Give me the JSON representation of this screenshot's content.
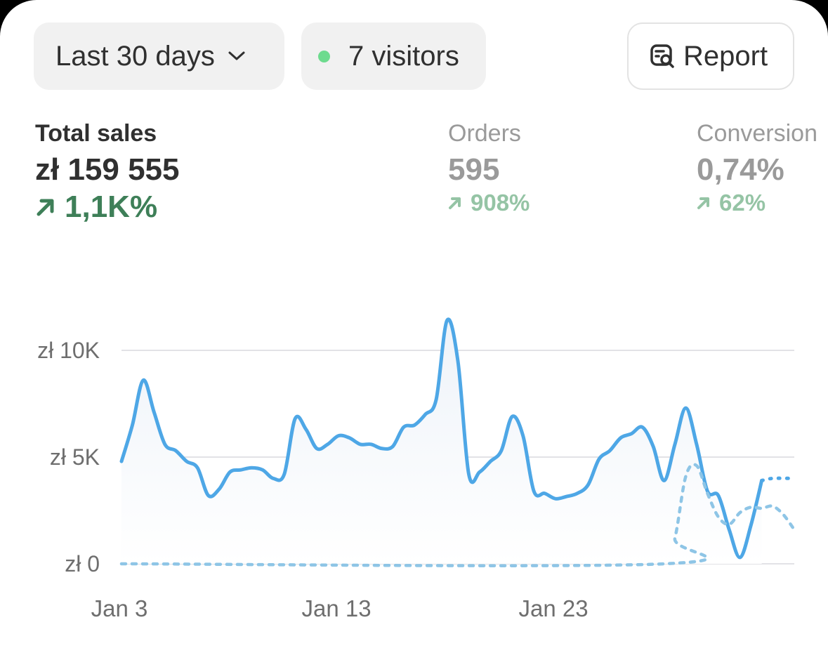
{
  "filters": {
    "date_range_label": "Last 30 days",
    "visitors_label": "7 visitors",
    "report_label": "Report"
  },
  "metrics": {
    "total_sales": {
      "label": "Total sales",
      "value": "zł 159 555",
      "change": "1,1K%"
    },
    "orders": {
      "label": "Orders",
      "value": "595",
      "change": "908%"
    },
    "conversion": {
      "label": "Conversion",
      "value": "0,74%",
      "change": "62%"
    }
  },
  "colors": {
    "current_line": "#4ea7e6",
    "comparison_line": "#8ec5e6",
    "positive_change": "#3e7f58",
    "positive_change_muted": "#95c4a5",
    "live_dot": "#6ddb8e"
  },
  "chart_data": {
    "type": "line",
    "title": "",
    "xlabel": "",
    "ylabel": "",
    "ylim": [
      0,
      11500
    ],
    "y_ticks": [
      {
        "value": 0,
        "label": "zł 0"
      },
      {
        "value": 5000,
        "label": "zł 5K"
      },
      {
        "value": 10000,
        "label": "zł 10K"
      }
    ],
    "x_ticks": [
      {
        "day": 3,
        "label": "Jan 3"
      },
      {
        "day": 13,
        "label": "Jan 13"
      },
      {
        "day": 23,
        "label": "Jan 23"
      }
    ],
    "grid": true,
    "legend": "none",
    "series": [
      {
        "style": "solid",
        "points": [
          [
            3.0,
            4800
          ],
          [
            3.5,
            6500
          ],
          [
            4.0,
            8600
          ],
          [
            4.5,
            7100
          ],
          [
            5.0,
            5600
          ],
          [
            5.5,
            5300
          ],
          [
            6.0,
            4800
          ],
          [
            6.5,
            4500
          ],
          [
            7.0,
            3200
          ],
          [
            7.5,
            3500
          ],
          [
            8.0,
            4300
          ],
          [
            8.5,
            4400
          ],
          [
            9.0,
            4500
          ],
          [
            9.5,
            4400
          ],
          [
            10.0,
            4000
          ],
          [
            10.5,
            4200
          ],
          [
            11.0,
            6800
          ],
          [
            11.5,
            6300
          ],
          [
            12.0,
            5400
          ],
          [
            12.5,
            5600
          ],
          [
            13.0,
            6000
          ],
          [
            13.5,
            5900
          ],
          [
            14.0,
            5600
          ],
          [
            14.5,
            5600
          ],
          [
            15.0,
            5400
          ],
          [
            15.5,
            5500
          ],
          [
            16.0,
            6400
          ],
          [
            16.5,
            6500
          ],
          [
            17.0,
            7000
          ],
          [
            17.5,
            7700
          ],
          [
            18.0,
            11400
          ],
          [
            18.5,
            9500
          ],
          [
            19.0,
            4200
          ],
          [
            19.5,
            4300
          ],
          [
            20.0,
            4800
          ],
          [
            20.5,
            5300
          ],
          [
            21.0,
            6900
          ],
          [
            21.5,
            6000
          ],
          [
            22.0,
            3400
          ],
          [
            22.5,
            3300
          ],
          [
            23.0,
            3050
          ],
          [
            23.5,
            3150
          ],
          [
            24.0,
            3300
          ],
          [
            24.5,
            3700
          ],
          [
            25.0,
            4900
          ],
          [
            25.5,
            5300
          ],
          [
            26.0,
            5900
          ],
          [
            26.5,
            6100
          ],
          [
            27.0,
            6400
          ],
          [
            27.5,
            5500
          ],
          [
            28.0,
            3900
          ],
          [
            28.5,
            5600
          ],
          [
            29.0,
            7300
          ],
          [
            29.5,
            5600
          ],
          [
            30.0,
            3400
          ],
          [
            30.5,
            3200
          ],
          [
            31.0,
            1600
          ],
          [
            31.5,
            300
          ],
          [
            32.0,
            1800
          ],
          [
            32.5,
            3900
          ]
        ]
      },
      {
        "style": "dotted",
        "points": [
          [
            32.5,
            3900
          ],
          [
            33.0,
            4000
          ],
          [
            34.0,
            4000
          ]
        ]
      },
      {
        "style": "dashed",
        "points": [
          [
            3.0,
            0
          ],
          [
            28.0,
            0
          ],
          [
            28.5,
            1200
          ],
          [
            29.0,
            4100
          ],
          [
            29.5,
            4600
          ],
          [
            30.0,
            3300
          ],
          [
            30.5,
            2200
          ],
          [
            31.0,
            1850
          ],
          [
            31.5,
            2400
          ],
          [
            32.0,
            2650
          ],
          [
            32.5,
            2600
          ],
          [
            33.0,
            2700
          ],
          [
            33.5,
            2300
          ],
          [
            34.0,
            1600
          ]
        ]
      }
    ]
  }
}
